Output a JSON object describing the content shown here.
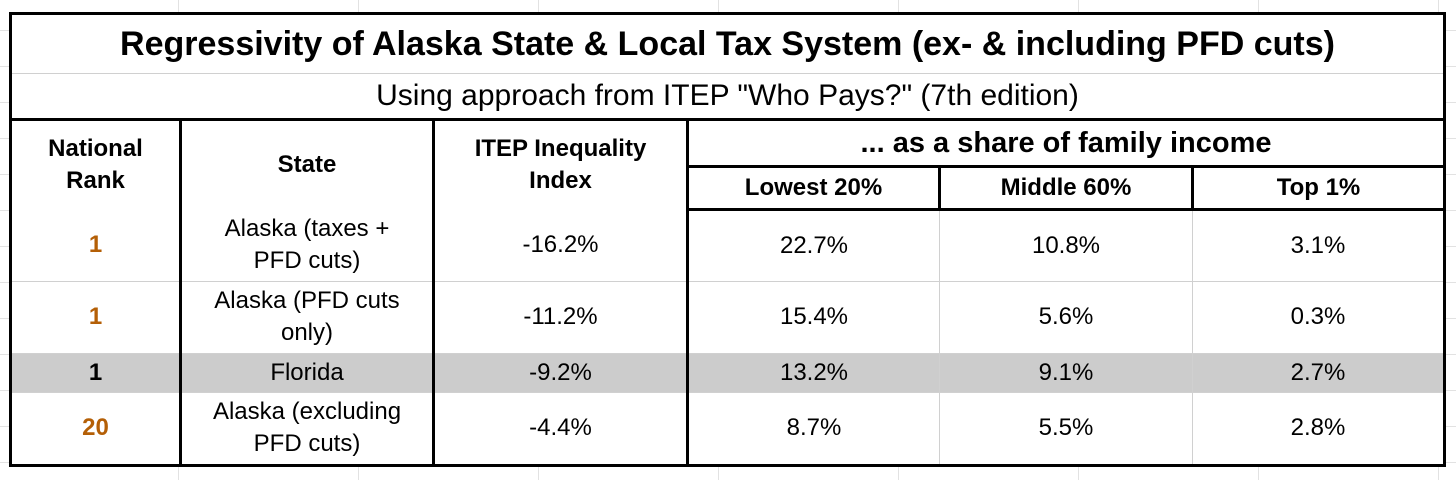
{
  "title": "Regressivity of Alaska State & Local Tax System (ex- & including PFD cuts)",
  "subtitle": "Using approach from ITEP \"Who Pays?\" (7th edition)",
  "headers": {
    "rank": "National Rank",
    "state": "State",
    "index": "ITEP Inequality Index",
    "group": "... as a share of family income",
    "lowest": "Lowest 20%",
    "middle": "Middle 60%",
    "top": "Top 1%"
  },
  "rows": [
    {
      "rank": "1",
      "state": "Alaska (taxes + PFD cuts)",
      "index": "-16.2%",
      "lowest": "22.7%",
      "middle": "10.8%",
      "top": "3.1%"
    },
    {
      "rank": "1",
      "state": "Alaska (PFD cuts only)",
      "index": "-11.2%",
      "lowest": "15.4%",
      "middle": "5.6%",
      "top": "0.3%"
    },
    {
      "rank": "1",
      "state": "Florida",
      "index": "-9.2%",
      "lowest": "13.2%",
      "middle": "9.1%",
      "top": "2.7%"
    },
    {
      "rank": "20",
      "state": "Alaska (excluding PFD cuts)",
      "index": "-4.4%",
      "lowest": "8.7%",
      "middle": "5.5%",
      "top": "2.8%"
    }
  ],
  "colors": {
    "rank_accent": "#b45f06",
    "highlight_row": "#cccccc",
    "border": "#000000"
  }
}
